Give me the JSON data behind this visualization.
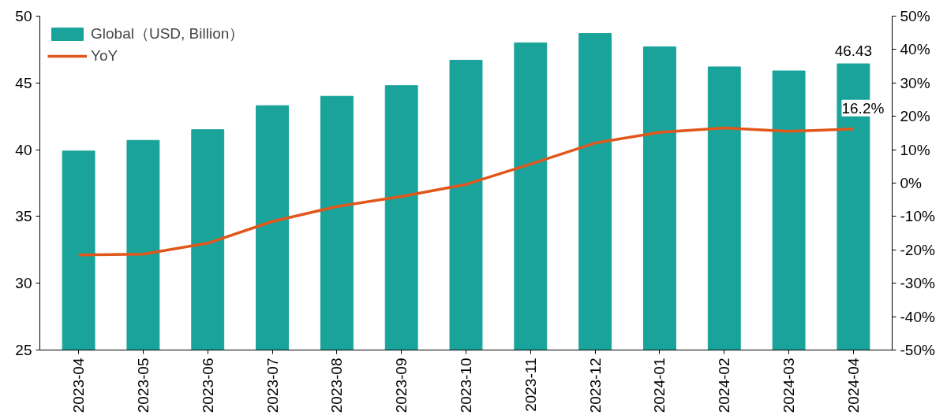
{
  "chart_data": {
    "type": "bar",
    "categories": [
      "2023-04",
      "2023-05",
      "2023-06",
      "2023-07",
      "2023-08",
      "2023-09",
      "2023-10",
      "2023-11",
      "2023-12",
      "2024-01",
      "2024-02",
      "2024-03",
      "2024-04"
    ],
    "series": [
      {
        "name": "Global（USD, Billion）",
        "color": "#1aa39a",
        "values": [
          39.9,
          40.7,
          41.5,
          43.3,
          44.0,
          44.8,
          46.7,
          48.0,
          48.7,
          47.7,
          46.2,
          45.9,
          46.43
        ],
        "value_labels": [
          null,
          null,
          null,
          null,
          null,
          null,
          null,
          null,
          null,
          null,
          null,
          null,
          "46.43"
        ]
      },
      {
        "name": "YoY",
        "type": "line",
        "axis": "y2",
        "color": "#e0561b",
        "values": [
          -21.5,
          -21.3,
          -18,
          -11.5,
          -7,
          -4,
          -0.4,
          5.7,
          12,
          15.2,
          16.5,
          15.5,
          16.2
        ],
        "value_labels": [
          null,
          null,
          null,
          null,
          null,
          null,
          null,
          null,
          null,
          null,
          null,
          null,
          "16.2%"
        ]
      }
    ],
    "ylim": [
      25,
      50
    ],
    "yticks": [
      25,
      30,
      35,
      40,
      45,
      50
    ],
    "y2lim": [
      -50,
      50
    ],
    "y2ticks": [
      {
        "value": -50,
        "label": "-50%"
      },
      {
        "value": -40,
        "label": "-40%"
      },
      {
        "value": -30,
        "label": "-30%"
      },
      {
        "value": -20,
        "label": "-20%"
      },
      {
        "value": -10,
        "label": "-10%"
      },
      {
        "value": 0,
        "label": "0%"
      },
      {
        "value": 10,
        "label": "10%"
      },
      {
        "value": 20,
        "label": "20%"
      },
      {
        "value": 30,
        "label": "30%"
      },
      {
        "value": 40,
        "label": "40%"
      },
      {
        "value": 50,
        "label": "50%"
      }
    ],
    "grid": false,
    "legend": "top left",
    "marker": "none",
    "line_style": "solid"
  }
}
